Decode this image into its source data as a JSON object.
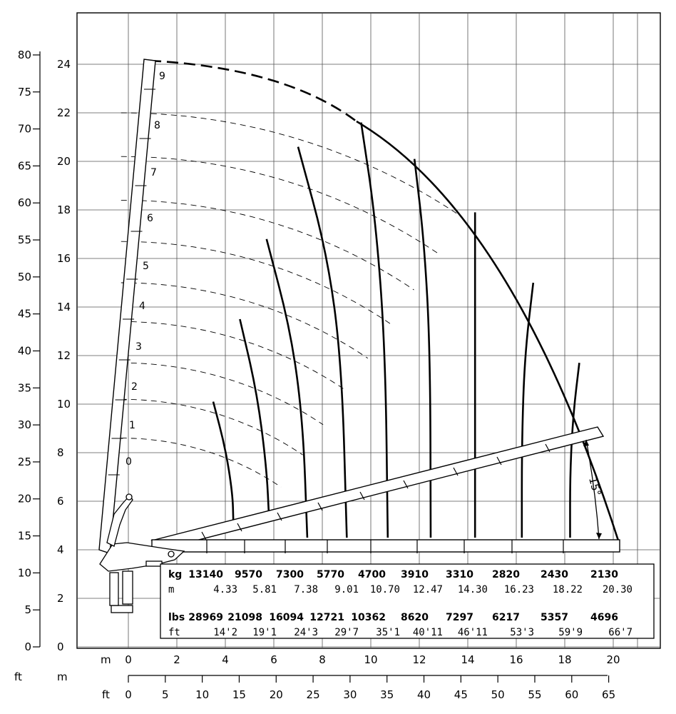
{
  "chart_data": {
    "type": "line",
    "title": "",
    "xlabel": "m",
    "ylabel": "m",
    "secondary_units": {
      "x": "ft",
      "y": "ft"
    },
    "xlim": [
      -1,
      22.5
    ],
    "ylim": [
      0,
      26
    ],
    "grid": true,
    "x_ticks_m": [
      0,
      2,
      4,
      6,
      8,
      10,
      12,
      14,
      16,
      18,
      20
    ],
    "y_ticks_m": [
      0,
      2,
      4,
      6,
      8,
      10,
      12,
      14,
      16,
      18,
      20,
      22,
      24
    ],
    "x_ticks_ft": [
      0,
      5,
      10,
      15,
      20,
      25,
      30,
      35,
      40,
      45,
      50,
      55,
      60,
      65
    ],
    "y_ticks_ft": [
      0,
      5,
      10,
      15,
      20,
      25,
      30,
      35,
      40,
      45,
      50,
      55,
      60,
      65,
      70,
      75,
      80
    ],
    "boom_segments": [
      "0",
      "1",
      "2",
      "3",
      "4",
      "5",
      "6",
      "7",
      "8",
      "9"
    ],
    "angle_label": "15°",
    "series": [
      {
        "values": [
          [
            3.5,
            10.1
          ],
          [
            4.0,
            8.2
          ],
          [
            4.3,
            6.3
          ],
          [
            4.33,
            5.15
          ]
        ]
      },
      {
        "values": [
          [
            4.6,
            13.5
          ],
          [
            5.3,
            10.5
          ],
          [
            5.7,
            7.4
          ],
          [
            5.81,
            5.15
          ]
        ]
      },
      {
        "values": [
          [
            5.7,
            16.8
          ],
          [
            6.7,
            13.0
          ],
          [
            7.2,
            9.3
          ],
          [
            7.38,
            4.5
          ]
        ]
      },
      {
        "values": [
          [
            7.0,
            20.6
          ],
          [
            8.2,
            16.2
          ],
          [
            8.8,
            11.7
          ],
          [
            9.01,
            4.5
          ]
        ]
      },
      {
        "values": [
          [
            9.6,
            21.6
          ],
          [
            10.2,
            17.6
          ],
          [
            10.6,
            12.2
          ],
          [
            10.7,
            4.5
          ]
        ]
      },
      {
        "values": [
          [
            11.8,
            20.1
          ],
          [
            12.2,
            16.7
          ],
          [
            12.45,
            12.2
          ],
          [
            12.47,
            4.5
          ]
        ]
      },
      {
        "values": [
          [
            14.3,
            17.9
          ],
          [
            14.3,
            4.5
          ]
        ]
      },
      {
        "values": [
          [
            16.7,
            15.0
          ],
          [
            16.35,
            12.0
          ],
          [
            16.23,
            8.5
          ],
          [
            16.23,
            4.5
          ]
        ]
      },
      {
        "values": [
          [
            18.6,
            11.7
          ],
          [
            18.35,
            9.6
          ],
          [
            18.22,
            7.2
          ],
          [
            18.22,
            4.5
          ]
        ]
      }
    ],
    "load_table": {
      "kg_label": "kg",
      "kg": [
        "13140",
        "9570",
        "7300",
        "5770",
        "4700",
        "3910",
        "3310",
        "2820",
        "2430",
        "2130"
      ],
      "m_label": "m",
      "m": [
        "4.33",
        "5.81",
        "7.38",
        "9.01",
        "10.70",
        "12.47",
        "14.30",
        "16.23",
        "18.22",
        "20.30"
      ],
      "lbs_label": "lbs",
      "lbs": [
        "28969",
        "21098",
        "16094",
        "12721",
        "10362",
        "8620",
        "7297",
        "6217",
        "5357",
        "4696"
      ],
      "ft_label": "ft",
      "ft": [
        "14'2",
        "19'1",
        "24'3",
        "29'7",
        "35'1",
        "40'11",
        "46'11",
        "53'3",
        "59'9",
        "66'7"
      ]
    }
  }
}
